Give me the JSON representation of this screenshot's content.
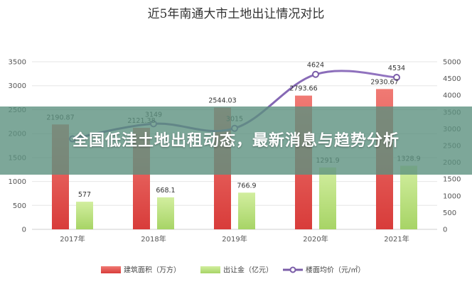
{
  "chart_data": {
    "type": "bar",
    "title": "近5年南通大市土地出让情况对比",
    "categories": [
      "2017年",
      "2018年",
      "2019年",
      "2020年",
      "2021年"
    ],
    "ylim": [
      0,
      3500
    ],
    "ylim_right": [
      0,
      5000
    ],
    "yticks": [
      "0",
      "500",
      "1000",
      "1500",
      "2000",
      "2500",
      "3000",
      "3500"
    ],
    "yticks_right": [
      "0",
      "500",
      "1000",
      "1500",
      "2000",
      "2500",
      "3000",
      "3500",
      "4000",
      "4500",
      "5000"
    ],
    "grid": true,
    "legend_position": "bottom",
    "series": [
      {
        "name": "建筑面积（万方）",
        "type": "bar",
        "axis": "left",
        "color": "#e8514f",
        "values": [
          2190.87,
          2121.38,
          2544.03,
          2793.66,
          2930.67
        ],
        "labels": [
          "2190.87",
          "2121.38",
          "2544.03",
          "2793.66",
          "2930.67"
        ]
      },
      {
        "name": "出让金（亿元）",
        "type": "bar",
        "axis": "left",
        "color": "#b5de77",
        "values": [
          577,
          668.1,
          766.9,
          1291.9,
          1328.9
        ],
        "labels": [
          "577",
          "668.1",
          "766.9",
          "1291.9",
          "1328.9"
        ]
      },
      {
        "name": "楼面均价（元/㎡）",
        "type": "line",
        "axis": "right",
        "color": "#7b5da8",
        "values": [
          2700,
          3149,
          3015,
          4624,
          4534
        ],
        "labels": [
          "",
          "3149",
          "3015",
          "4624",
          "4534"
        ]
      }
    ]
  },
  "banner": {
    "headline": "全国低洼土地出租动态，最新消息与趋势分析"
  }
}
